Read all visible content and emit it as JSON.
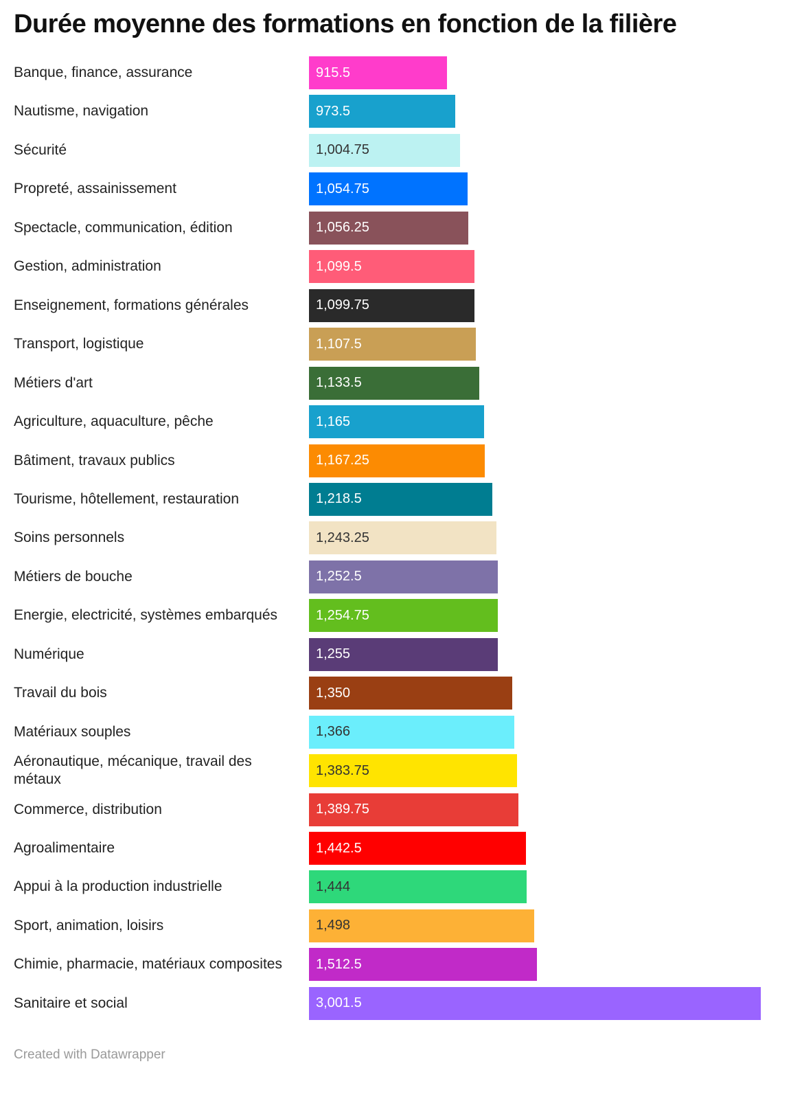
{
  "chart_data": {
    "type": "bar",
    "orientation": "horizontal",
    "title": "Durée moyenne des formations en fonction de la filière",
    "xlabel": "",
    "ylabel": "",
    "xlim": [
      0,
      3001.5
    ],
    "grid": false,
    "categories": [
      "Banque, finance, assurance",
      "Nautisme, navigation",
      "Sécurité",
      "Propreté, assainissement",
      "Spectacle, communication, édition",
      "Gestion, administration",
      "Enseignement, formations générales",
      "Transport, logistique",
      "Métiers d'art",
      "Agriculture, aquaculture, pêche",
      "Bâtiment, travaux publics",
      "Tourisme, hôtellement, restauration",
      "Soins personnels",
      "Métiers de bouche",
      "Energie, electricité, systèmes embarqués",
      "Numérique",
      "Travail du bois",
      "Matériaux souples",
      "Aéronautique, mécanique, travail des métaux",
      "Commerce, distribution",
      "Agroalimentaire",
      "Appui à la production industrielle",
      "Sport, animation, loisirs",
      "Chimie, pharmacie, matériaux composites",
      "Sanitaire et social"
    ],
    "values": [
      915.5,
      973.5,
      1004.75,
      1054.75,
      1056.25,
      1099.5,
      1099.75,
      1107.5,
      1133.5,
      1165,
      1167.25,
      1218.5,
      1243.25,
      1252.5,
      1254.75,
      1255,
      1350,
      1366,
      1383.75,
      1389.75,
      1442.5,
      1444,
      1498,
      1512.5,
      3001.5
    ],
    "value_labels": [
      "915.5",
      "973.5",
      "1,004.75",
      "1,054.75",
      "1,056.25",
      "1,099.5",
      "1,099.75",
      "1,107.5",
      "1,133.5",
      "1,165",
      "1,167.25",
      "1,218.5",
      "1,243.25",
      "1,252.5",
      "1,254.75",
      "1,255",
      "1,350",
      "1,366",
      "1,383.75",
      "1,389.75",
      "1,442.5",
      "1,444",
      "1,498",
      "1,512.5",
      "3,001.5"
    ],
    "colors": [
      "#ff3ccb",
      "#18a1cd",
      "#bcf2f2",
      "#0073ff",
      "#89525a",
      "#ff5c78",
      "#2a2a2a",
      "#c99f55",
      "#3a6e37",
      "#18a1cd",
      "#fc8b02",
      "#007d91",
      "#f2e3c4",
      "#7e72a8",
      "#63be1e",
      "#5a3c77",
      "#9a3f13",
      "#6beefc",
      "#ffe400",
      "#e83d37",
      "#ff0000",
      "#2ed87a",
      "#fdb136",
      "#c12ac8",
      "#9a64ff"
    ],
    "label_text_colors": [
      "#ffffff",
      "#ffffff",
      "#333333",
      "#ffffff",
      "#ffffff",
      "#ffffff",
      "#ffffff",
      "#ffffff",
      "#ffffff",
      "#ffffff",
      "#ffffff",
      "#ffffff",
      "#333333",
      "#ffffff",
      "#ffffff",
      "#ffffff",
      "#ffffff",
      "#333333",
      "#333333",
      "#ffffff",
      "#ffffff",
      "#333333",
      "#333333",
      "#ffffff",
      "#ffffff"
    ]
  },
  "footer": "Created with Datawrapper"
}
